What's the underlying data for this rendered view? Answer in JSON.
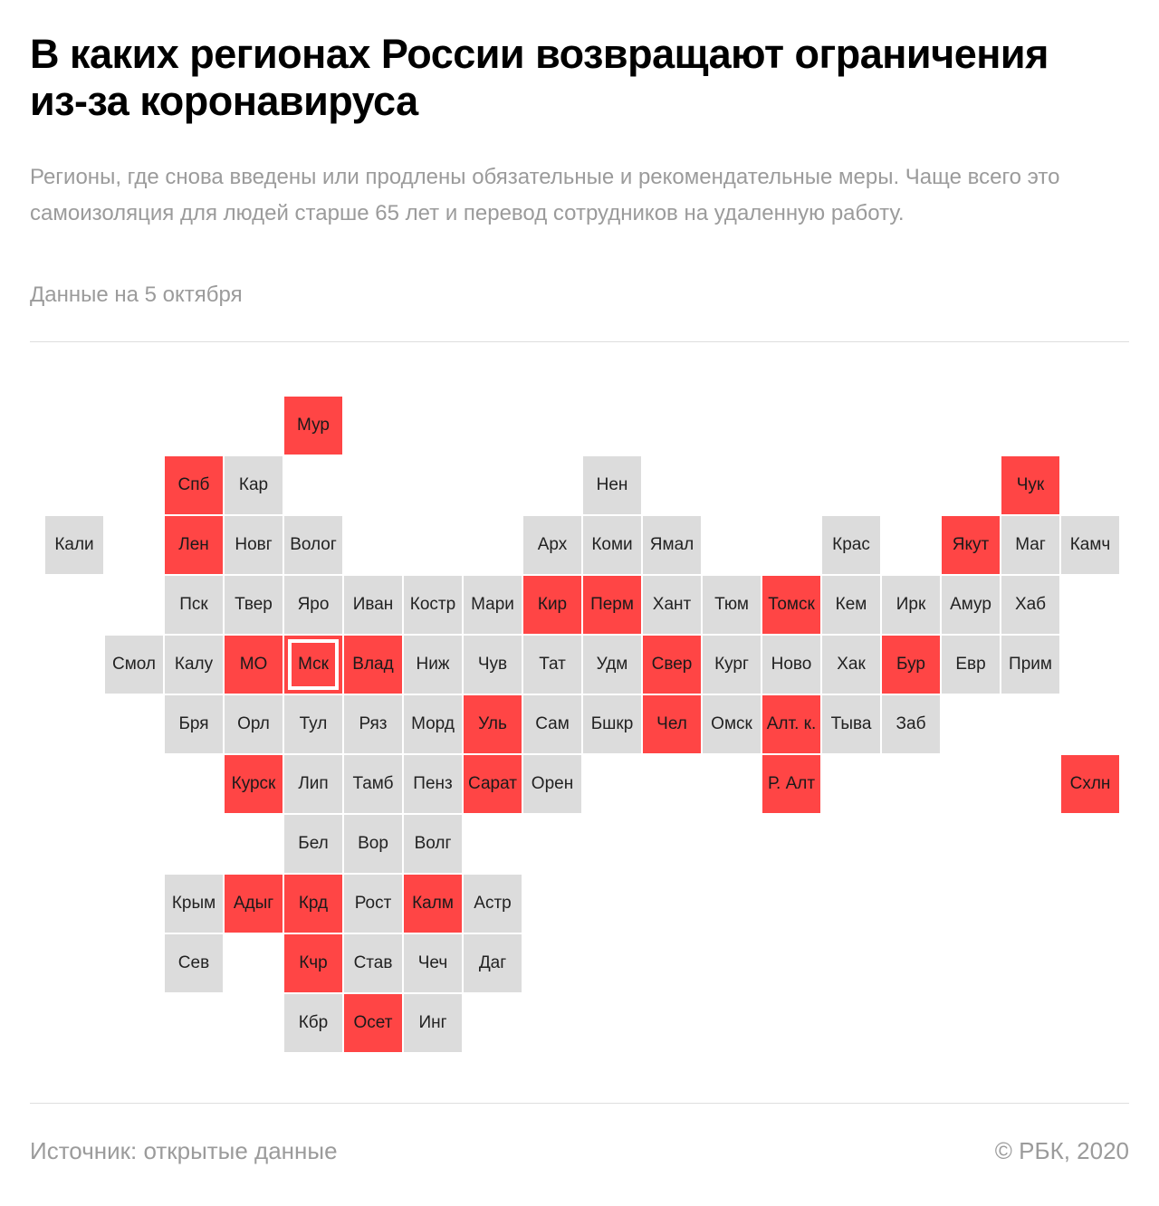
{
  "header": {
    "title": "В каких регионах России возвращают ограничения из-за коронавируса",
    "subtitle": "Регионы, где снова введены или продлены обязательные и рекомендательные меры. Чаще всего это самоизоляция для людей старше 65 лет и перевод сотрудников на удаленную работу.",
    "date_note": "Данные на 5 октября"
  },
  "colors": {
    "restricted": "#ff4545",
    "normal": "#dcdcdc"
  },
  "regions": [
    {
      "label": "Мур",
      "row": 0,
      "col": 4,
      "restricted": true
    },
    {
      "label": "Спб",
      "row": 1,
      "col": 2,
      "restricted": true
    },
    {
      "label": "Кар",
      "row": 1,
      "col": 3,
      "restricted": false
    },
    {
      "label": "Нен",
      "row": 1,
      "col": 9,
      "restricted": false
    },
    {
      "label": "Чук",
      "row": 1,
      "col": 16,
      "restricted": true
    },
    {
      "label": "Кали",
      "row": 2,
      "col": 0,
      "restricted": false
    },
    {
      "label": "Лен",
      "row": 2,
      "col": 2,
      "restricted": true
    },
    {
      "label": "Новг",
      "row": 2,
      "col": 3,
      "restricted": false
    },
    {
      "label": "Волог",
      "row": 2,
      "col": 4,
      "restricted": false
    },
    {
      "label": "Арх",
      "row": 2,
      "col": 8,
      "restricted": false
    },
    {
      "label": "Коми",
      "row": 2,
      "col": 9,
      "restricted": false
    },
    {
      "label": "Ямал",
      "row": 2,
      "col": 10,
      "restricted": false
    },
    {
      "label": "Крас",
      "row": 2,
      "col": 13,
      "restricted": false
    },
    {
      "label": "Якут",
      "row": 2,
      "col": 15,
      "restricted": true
    },
    {
      "label": "Маг",
      "row": 2,
      "col": 16,
      "restricted": false
    },
    {
      "label": "Камч",
      "row": 2,
      "col": 17,
      "restricted": false
    },
    {
      "label": "Пск",
      "row": 3,
      "col": 2,
      "restricted": false
    },
    {
      "label": "Твер",
      "row": 3,
      "col": 3,
      "restricted": false
    },
    {
      "label": "Яро",
      "row": 3,
      "col": 4,
      "restricted": false
    },
    {
      "label": "Иван",
      "row": 3,
      "col": 5,
      "restricted": false
    },
    {
      "label": "Костр",
      "row": 3,
      "col": 6,
      "restricted": false
    },
    {
      "label": "Мари",
      "row": 3,
      "col": 7,
      "restricted": false
    },
    {
      "label": "Кир",
      "row": 3,
      "col": 8,
      "restricted": true
    },
    {
      "label": "Перм",
      "row": 3,
      "col": 9,
      "restricted": true
    },
    {
      "label": "Хант",
      "row": 3,
      "col": 10,
      "restricted": false
    },
    {
      "label": "Тюм",
      "row": 3,
      "col": 11,
      "restricted": false
    },
    {
      "label": "Томск",
      "row": 3,
      "col": 12,
      "restricted": true
    },
    {
      "label": "Кем",
      "row": 3,
      "col": 13,
      "restricted": false
    },
    {
      "label": "Ирк",
      "row": 3,
      "col": 14,
      "restricted": false
    },
    {
      "label": "Амур",
      "row": 3,
      "col": 15,
      "restricted": false
    },
    {
      "label": "Хаб",
      "row": 3,
      "col": 16,
      "restricted": false
    },
    {
      "label": "Смол",
      "row": 4,
      "col": 1,
      "restricted": false
    },
    {
      "label": "Калу",
      "row": 4,
      "col": 2,
      "restricted": false
    },
    {
      "label": "МО",
      "row": 4,
      "col": 3,
      "restricted": true
    },
    {
      "label": "Мск",
      "row": 4,
      "col": 4,
      "restricted": true,
      "capital": true
    },
    {
      "label": "Влад",
      "row": 4,
      "col": 5,
      "restricted": true
    },
    {
      "label": "Ниж",
      "row": 4,
      "col": 6,
      "restricted": false
    },
    {
      "label": "Чув",
      "row": 4,
      "col": 7,
      "restricted": false
    },
    {
      "label": "Тат",
      "row": 4,
      "col": 8,
      "restricted": false
    },
    {
      "label": "Удм",
      "row": 4,
      "col": 9,
      "restricted": false
    },
    {
      "label": "Свер",
      "row": 4,
      "col": 10,
      "restricted": true
    },
    {
      "label": "Кург",
      "row": 4,
      "col": 11,
      "restricted": false
    },
    {
      "label": "Ново",
      "row": 4,
      "col": 12,
      "restricted": false
    },
    {
      "label": "Хак",
      "row": 4,
      "col": 13,
      "restricted": false
    },
    {
      "label": "Бур",
      "row": 4,
      "col": 14,
      "restricted": true
    },
    {
      "label": "Евр",
      "row": 4,
      "col": 15,
      "restricted": false
    },
    {
      "label": "Прим",
      "row": 4,
      "col": 16,
      "restricted": false
    },
    {
      "label": "Бря",
      "row": 5,
      "col": 2,
      "restricted": false
    },
    {
      "label": "Орл",
      "row": 5,
      "col": 3,
      "restricted": false
    },
    {
      "label": "Тул",
      "row": 5,
      "col": 4,
      "restricted": false
    },
    {
      "label": "Ряз",
      "row": 5,
      "col": 5,
      "restricted": false
    },
    {
      "label": "Морд",
      "row": 5,
      "col": 6,
      "restricted": false
    },
    {
      "label": "Уль",
      "row": 5,
      "col": 7,
      "restricted": true
    },
    {
      "label": "Сам",
      "row": 5,
      "col": 8,
      "restricted": false
    },
    {
      "label": "Бшкр",
      "row": 5,
      "col": 9,
      "restricted": false
    },
    {
      "label": "Чел",
      "row": 5,
      "col": 10,
      "restricted": true
    },
    {
      "label": "Омск",
      "row": 5,
      "col": 11,
      "restricted": false
    },
    {
      "label": "Алт. к.",
      "row": 5,
      "col": 12,
      "restricted": true
    },
    {
      "label": "Тыва",
      "row": 5,
      "col": 13,
      "restricted": false
    },
    {
      "label": "Заб",
      "row": 5,
      "col": 14,
      "restricted": false
    },
    {
      "label": "Курск",
      "row": 6,
      "col": 3,
      "restricted": true
    },
    {
      "label": "Лип",
      "row": 6,
      "col": 4,
      "restricted": false
    },
    {
      "label": "Тамб",
      "row": 6,
      "col": 5,
      "restricted": false
    },
    {
      "label": "Пенз",
      "row": 6,
      "col": 6,
      "restricted": false
    },
    {
      "label": "Сарат",
      "row": 6,
      "col": 7,
      "restricted": true
    },
    {
      "label": "Орен",
      "row": 6,
      "col": 8,
      "restricted": false
    },
    {
      "label": "Р. Алт",
      "row": 6,
      "col": 12,
      "restricted": true
    },
    {
      "label": "Схлн",
      "row": 6,
      "col": 17,
      "restricted": true
    },
    {
      "label": "Бел",
      "row": 7,
      "col": 4,
      "restricted": false
    },
    {
      "label": "Вор",
      "row": 7,
      "col": 5,
      "restricted": false
    },
    {
      "label": "Волг",
      "row": 7,
      "col": 6,
      "restricted": false
    },
    {
      "label": "Крым",
      "row": 8,
      "col": 2,
      "restricted": false
    },
    {
      "label": "Адыг",
      "row": 8,
      "col": 3,
      "restricted": true
    },
    {
      "label": "Крд",
      "row": 8,
      "col": 4,
      "restricted": true
    },
    {
      "label": "Рост",
      "row": 8,
      "col": 5,
      "restricted": false
    },
    {
      "label": "Калм",
      "row": 8,
      "col": 6,
      "restricted": true
    },
    {
      "label": "Астр",
      "row": 8,
      "col": 7,
      "restricted": false
    },
    {
      "label": "Сев",
      "row": 9,
      "col": 2,
      "restricted": false
    },
    {
      "label": "Кчр",
      "row": 9,
      "col": 4,
      "restricted": true
    },
    {
      "label": "Став",
      "row": 9,
      "col": 5,
      "restricted": false
    },
    {
      "label": "Чеч",
      "row": 9,
      "col": 6,
      "restricted": false
    },
    {
      "label": "Даг",
      "row": 9,
      "col": 7,
      "restricted": false
    },
    {
      "label": "Кбр",
      "row": 10,
      "col": 4,
      "restricted": false
    },
    {
      "label": "Осет",
      "row": 10,
      "col": 5,
      "restricted": true
    },
    {
      "label": "Инг",
      "row": 10,
      "col": 6,
      "restricted": false
    }
  ],
  "footer": {
    "source": "Источник:  открытые данные",
    "copyright": "©  РБК, 2020"
  }
}
